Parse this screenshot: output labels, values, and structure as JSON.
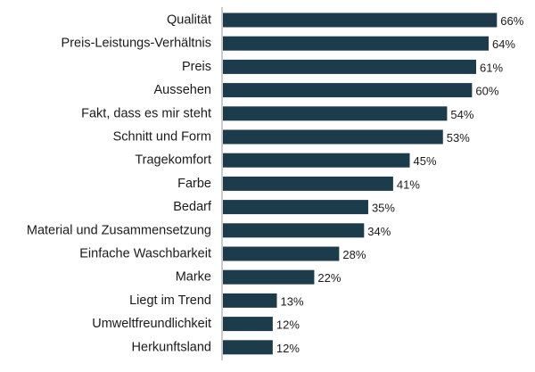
{
  "chart_data": {
    "type": "bar",
    "orientation": "horizontal",
    "categories": [
      "Qualität",
      "Preis-Leistungs-Verhältnis",
      "Preis",
      "Aussehen",
      "Fakt, dass es mir steht",
      "Schnitt und Form",
      "Tragekomfort",
      "Farbe",
      "Bedarf",
      "Material und Zusammensetzung",
      "Einfache Waschbarkeit",
      "Marke",
      "Liegt im Trend",
      "Umweltfreundlichkeit",
      "Herkunftsland"
    ],
    "values": [
      66,
      64,
      61,
      60,
      54,
      53,
      45,
      41,
      35,
      34,
      28,
      22,
      13,
      12,
      12
    ],
    "value_labels": [
      "66%",
      "64%",
      "61%",
      "60%",
      "54%",
      "53%",
      "45%",
      "41%",
      "35%",
      "34%",
      "28%",
      "22%",
      "13%",
      "12%",
      "12%"
    ],
    "unit": "%",
    "xlim": [
      0,
      74
    ],
    "grid": false,
    "legend": "none",
    "colors": {
      "bar": "#1c3c4b",
      "axis": "#9a9a9a",
      "text": "#1a1a1a"
    }
  }
}
